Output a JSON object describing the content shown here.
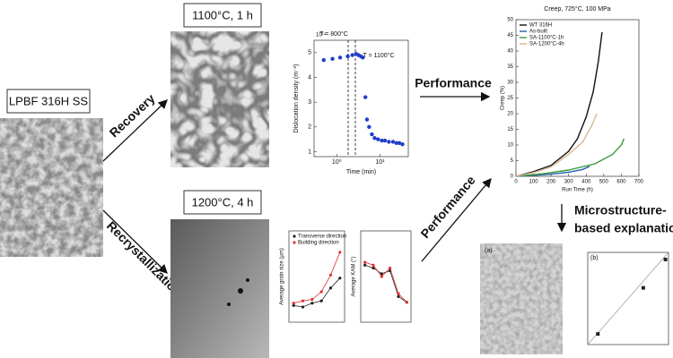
{
  "input": {
    "label": "LPBF 316H SS"
  },
  "routes": [
    {
      "label": "Recovery",
      "treatment": "1100°C, 1 h"
    },
    {
      "label": "Recrystallization",
      "treatment": "1200°C, 4 h"
    }
  ],
  "performance_labels": [
    "Performance",
    "Performance"
  ],
  "explanation": [
    "Microstructure-",
    "based explanation"
  ],
  "dislocation_plot": {
    "type": "scatter",
    "annotations": [
      "T = 800°C",
      "T = 1100°C"
    ],
    "multiplier": "10¹⁴",
    "xlabel": "Time (min)",
    "ylabel": "Dislocation density (m⁻²)",
    "log_x": true,
    "x": [
      0.5,
      0.8,
      1.2,
      1.8,
      2.3,
      2.8,
      3.2,
      3.6,
      4.0,
      4.6,
      5.0,
      5.6,
      6.5,
      7.5,
      9,
      11,
      13,
      16,
      20,
      24,
      28,
      33
    ],
    "values": [
      4.7,
      4.75,
      4.8,
      4.85,
      4.9,
      4.95,
      4.9,
      4.85,
      4.8,
      3.2,
      2.3,
      2.0,
      1.7,
      1.55,
      1.5,
      1.45,
      1.45,
      1.4,
      1.4,
      1.35,
      1.35,
      1.3
    ],
    "color": "#1f3fc8",
    "xlim": [
      0.3,
      45
    ],
    "ylim": [
      0.8,
      5.5
    ],
    "xticks": [
      {
        "value": 1,
        "label": "10⁰"
      },
      {
        "value": 10,
        "label": "10¹"
      }
    ],
    "yticks": [
      1,
      2,
      3,
      4,
      5
    ]
  },
  "creep_plot": {
    "type": "line",
    "title": "Creep, 725°C, 100 MPa",
    "xlabel": "Run Time (h)",
    "ylabel": "Creep (%)",
    "xlim": [
      0,
      700
    ],
    "ylim": [
      0,
      50
    ],
    "xticks": [
      0,
      100,
      200,
      300,
      400,
      500,
      600,
      700
    ],
    "yticks": [
      0,
      5,
      10,
      15,
      20,
      25,
      30,
      35,
      40,
      45,
      50
    ],
    "series": [
      {
        "name": "WT 316H",
        "color": "#111111",
        "x": [
          0,
          100,
          200,
          300,
          350,
          400,
          440,
          470,
          490
        ],
        "values": [
          0,
          1.5,
          3.5,
          8,
          12,
          19,
          27,
          37,
          46
        ]
      },
      {
        "name": "As-built",
        "color": "#1f5fb0",
        "x": [
          0,
          100,
          200,
          300,
          380,
          420
        ],
        "values": [
          0,
          0.3,
          0.7,
          1.3,
          2.2,
          3.2
        ]
      },
      {
        "name": "SA-1100°C-1h",
        "color": "#3a9a3a",
        "x": [
          0,
          150,
          300,
          450,
          550,
          600,
          615
        ],
        "values": [
          0,
          0.8,
          2,
          4,
          7,
          10,
          12
        ]
      },
      {
        "name": "SA-1200°C-4h",
        "color": "#d8b890",
        "x": [
          0,
          100,
          200,
          300,
          380,
          430,
          460
        ],
        "values": [
          0,
          1.2,
          3,
          7,
          11,
          16,
          20
        ]
      }
    ]
  },
  "grain_size_plot": {
    "type": "line",
    "ylabel": "Average grain size (µm)",
    "ylim": [
      0,
      120
    ],
    "series": [
      {
        "name": "Transverse direction",
        "color": "#222222",
        "values": [
          22,
          20,
          25,
          28,
          45,
          58
        ]
      },
      {
        "name": "Building direction",
        "color": "#e03030",
        "values": [
          25,
          28,
          30,
          40,
          62,
          92
        ]
      }
    ]
  },
  "kam_plot": {
    "type": "line",
    "ylabel": "Average KAM (°)",
    "ylim": [
      0,
      1.6
    ],
    "series": [
      {
        "name": "Transverse direction",
        "color": "#222222",
        "values": [
          1.0,
          0.95,
          0.85,
          0.9,
          0.45,
          0.35
        ]
      },
      {
        "name": "Building direction",
        "color": "#e03030",
        "values": [
          1.05,
          1.0,
          0.8,
          0.95,
          0.5,
          0.35
        ]
      }
    ]
  },
  "explanation_plot": {
    "type": "scatter",
    "panel_labels": [
      "(a)",
      "(b)"
    ],
    "xlim": [
      20,
      100
    ],
    "ylim": [
      0,
      13
    ],
    "x": [
      30,
      75,
      97
    ],
    "values": [
      1.5,
      8,
      12
    ],
    "color": "#222222"
  }
}
